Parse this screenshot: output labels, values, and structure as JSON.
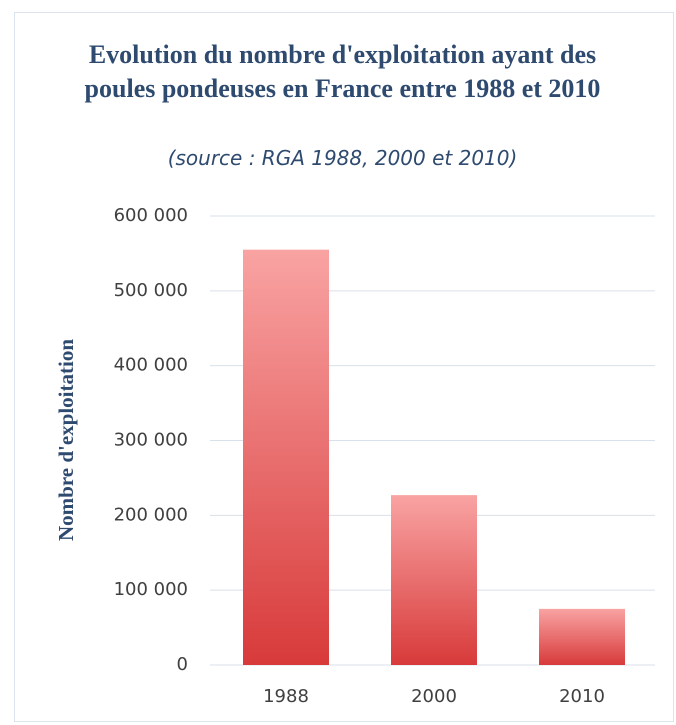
{
  "chart_data": {
    "type": "bar",
    "title": "Evolution du nombre d'exploitation ayant des poules pondeuses en France entre 1988 et 2010",
    "subtitle": "(source : RGA 1988, 2000 et 2010)",
    "y_label": "Nombre d'exploitation",
    "categories": [
      "1988",
      "2000",
      "2010"
    ],
    "values": [
      555000,
      227000,
      75000
    ],
    "color": "#e05555",
    "ylim": [
      0,
      600000
    ],
    "yticks": [
      0,
      {
        "value": 100000,
        "label": "100 000"
      },
      {
        "value": 200000,
        "label": "200 000"
      },
      {
        "value": 300000,
        "label": "300 000"
      },
      {
        "value": 400000,
        "label": "400 000"
      },
      {
        "value": 500000,
        "label": "500 000"
      },
      {
        "value": 600000,
        "label": "600 000"
      }
    ],
    "grid": true
  }
}
